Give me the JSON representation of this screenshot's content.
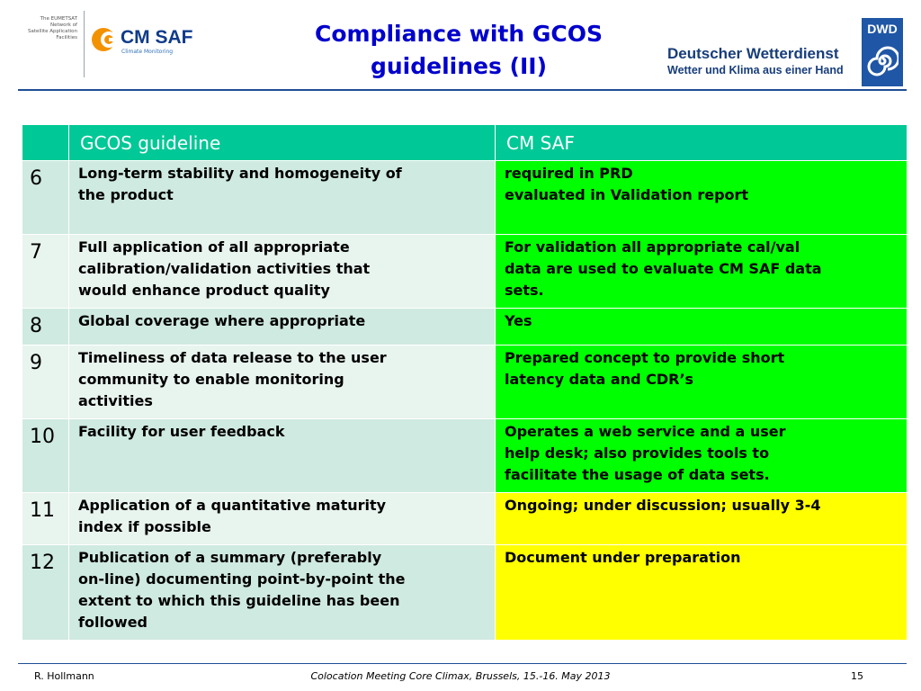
{
  "header": {
    "eumetsat_text": [
      "The EUMETSAT",
      "Network of",
      "Satellite Application",
      "Facilities"
    ],
    "cmsaf_name": "CM SAF",
    "cmsaf_subtitle": "Climate Monitoring",
    "title_line1": "Compliance with GCOS",
    "title_line2": "guidelines (II)",
    "dwd_abbr": "DWD",
    "dwd_name": "Deutscher Wetterdienst",
    "dwd_slogan": "Wetter und Klima aus einer Hand"
  },
  "table": {
    "columns": [
      "",
      "GCOS guideline",
      "CM SAF"
    ],
    "rows": [
      {
        "num": "6",
        "guideline": [
          "Long-term stability and homogeneity of",
          "the product"
        ],
        "cm_saf": [
          "required in PRD",
          "evaluated in Validation report"
        ],
        "status_color": "#00ff00"
      },
      {
        "num": "7",
        "guideline": [
          "Full application of all appropriate",
          "calibration/validation activities that",
          "would enhance product quality"
        ],
        "cm_saf": [
          "For validation all appropriate cal/val",
          "data are used to evaluate CM SAF data",
          "sets."
        ],
        "status_color": "#00ff00"
      },
      {
        "num": "8",
        "guideline": [
          "Global coverage where appropriate"
        ],
        "cm_saf": [
          "Yes"
        ],
        "status_color": "#00ff00"
      },
      {
        "num": "9",
        "guideline": [
          "Timeliness of data release to the user",
          "community to enable monitoring",
          "activities"
        ],
        "cm_saf": [
          "Prepared concept to provide short",
          "latency data and CDR’s"
        ],
        "status_color": "#00ff00"
      },
      {
        "num": "10",
        "guideline": [
          "Facility for user feedback"
        ],
        "cm_saf": [
          "Operates a web service and a user",
          "help desk; also provides tools to",
          "facilitate the usage of data sets."
        ],
        "status_color": "#00ff00"
      },
      {
        "num": "11",
        "guideline": [
          "Application of a quantitative maturity",
          "index if possible"
        ],
        "cm_saf": [
          "Ongoing; under discussion; usually 3-4"
        ],
        "status_color": "#ffff00"
      },
      {
        "num": "12",
        "guideline": [
          "Publication of a summary (preferably",
          "on-line) documenting point-by-point the",
          "extent to which this guideline has been",
          "followed"
        ],
        "cm_saf": [
          "Document under preparation"
        ],
        "status_color": "#ffff00"
      }
    ]
  },
  "footer": {
    "author": "R. Hollmann",
    "event": "Colocation Meeting Core Climax, Brussels, 15.-16. May 2013",
    "page": "15"
  },
  "colors": {
    "header_teal": "#00c896",
    "title_blue": "#0000cc",
    "status_green": "#00ff00",
    "status_yellow": "#ffff00",
    "dwd_blue": "#1f56a5",
    "cmsaf_orange": "#f39200"
  }
}
